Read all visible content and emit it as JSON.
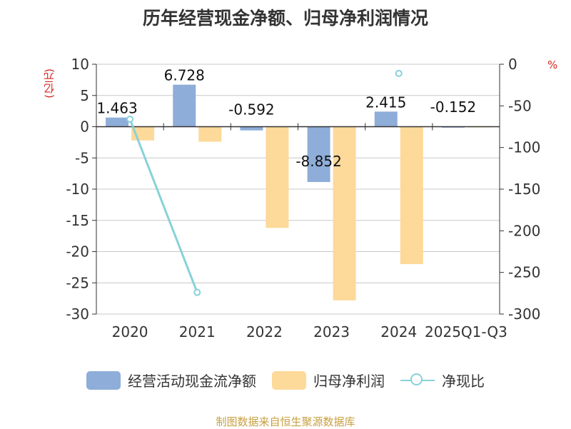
{
  "chart_data": {
    "type": "bar",
    "title": "历年经营现金净额、归母净利润情况",
    "left_unit": "(亿元)",
    "right_unit": "%",
    "categories": [
      "2020",
      "2021",
      "2022",
      "2023",
      "2024",
      "2025Q1-Q3"
    ],
    "left_ylim": [
      -30,
      10
    ],
    "left_ticks": [
      10,
      5,
      0,
      -5,
      -10,
      -15,
      -20,
      -25,
      -30
    ],
    "right_ylim": [
      -300,
      0
    ],
    "right_ticks": [
      0,
      -50,
      -100,
      -150,
      -200,
      -250,
      -300
    ],
    "series": [
      {
        "name": "经营活动现金流净额",
        "kind": "bar",
        "axis": "left",
        "color": "#8eadd9",
        "values": [
          1.463,
          6.728,
          -0.592,
          -8.852,
          2.415,
          -0.152
        ],
        "labels": [
          "1.463",
          "6.728",
          "-0.592",
          "-8.852",
          "2.415",
          "-0.152"
        ]
      },
      {
        "name": "归母净利润",
        "kind": "bar",
        "axis": "left",
        "color": "#fdd99a",
        "values": [
          -2.2,
          -2.4,
          -16.2,
          -27.8,
          -22.0,
          -0.1
        ]
      },
      {
        "name": "净现比",
        "kind": "line",
        "axis": "right",
        "color": "#87d2d8",
        "values": [
          -66,
          -274,
          null,
          null,
          -11,
          null
        ]
      }
    ]
  },
  "source": "制图数据来自恒生聚源数据库"
}
